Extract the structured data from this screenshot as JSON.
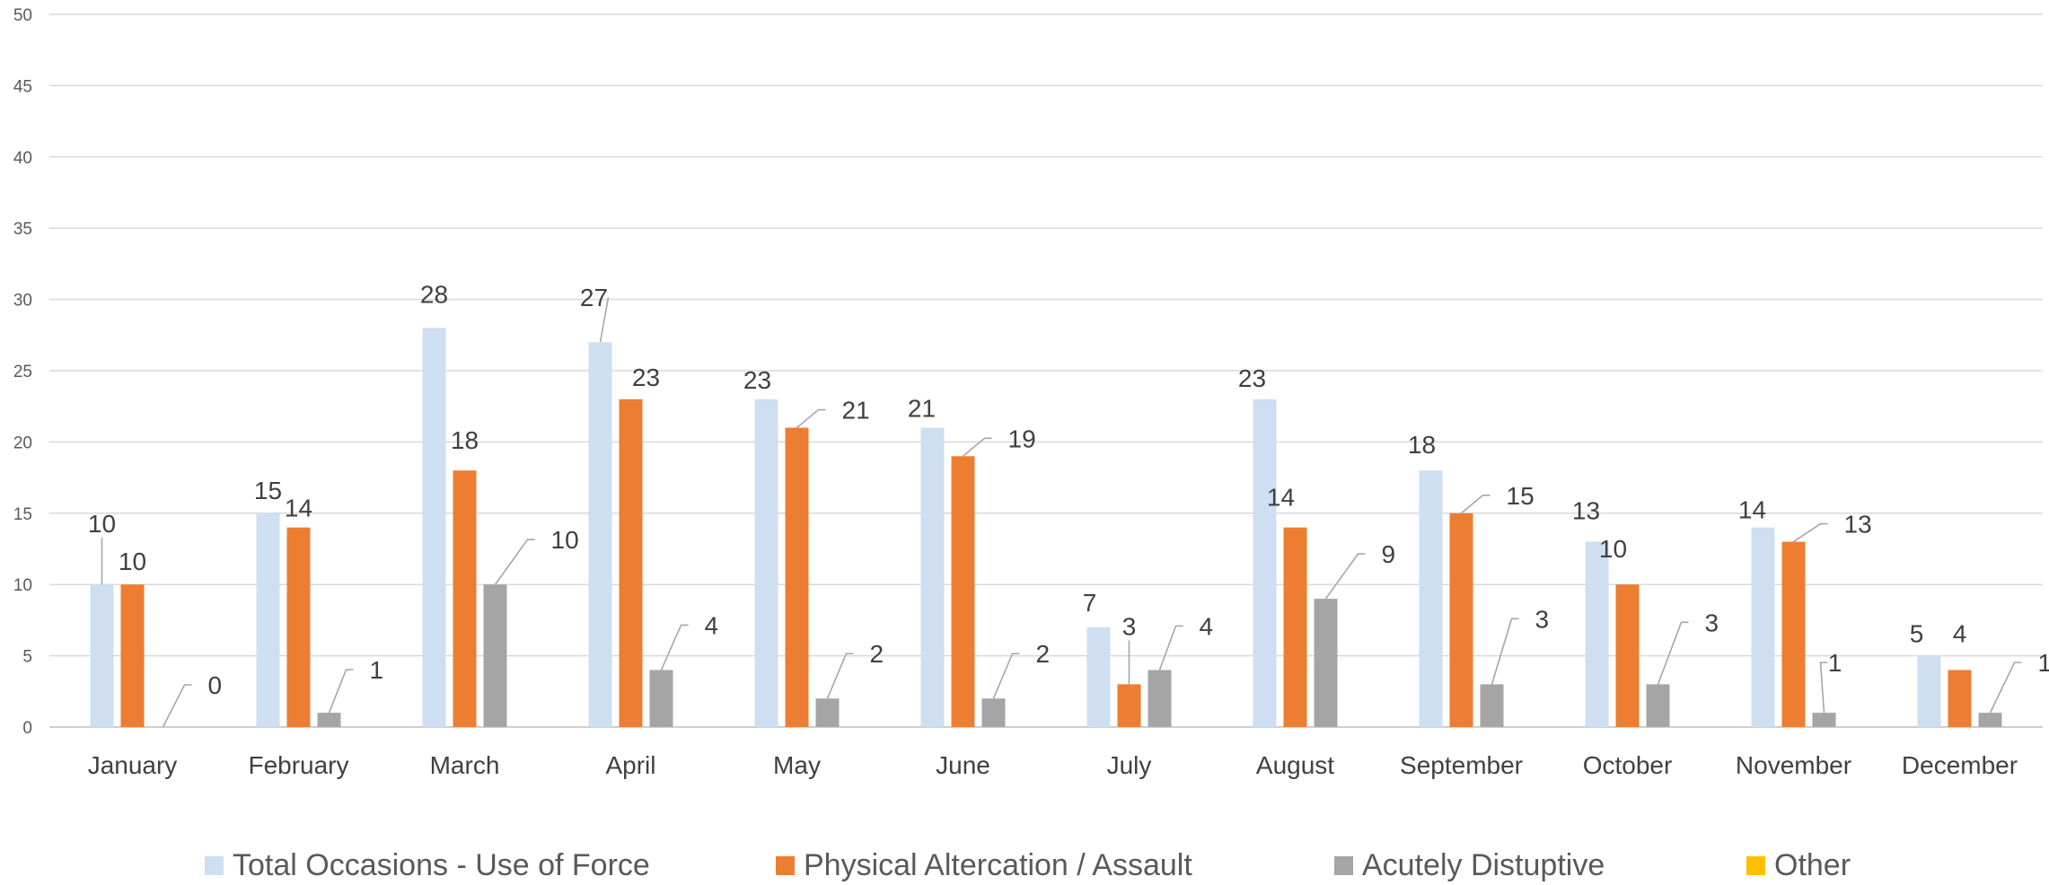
{
  "chart_data": {
    "type": "bar",
    "title": "",
    "xlabel": "",
    "ylabel": "",
    "ylim": [
      0,
      50
    ],
    "yticks": [
      0,
      5,
      10,
      15,
      20,
      25,
      30,
      35,
      40,
      45,
      50
    ],
    "grid": true,
    "legend_position": "bottom",
    "categories": [
      "January",
      "February",
      "March",
      "April",
      "May",
      "June",
      "July",
      "August",
      "September",
      "October",
      "November",
      "December"
    ],
    "series": [
      {
        "name": "Total Occasions - Use of Force",
        "color": "#cddff0",
        "values": [
          10,
          15,
          28,
          27,
          23,
          21,
          7,
          23,
          18,
          13,
          14,
          5
        ]
      },
      {
        "name": "Physical Altercation / Assault",
        "color": "#ed7d31",
        "values": [
          10,
          14,
          18,
          23,
          21,
          19,
          3,
          14,
          15,
          10,
          13,
          4
        ]
      },
      {
        "name": "Acutely Distuptive",
        "color": "#a5a5a5",
        "values": [
          0,
          1,
          10,
          4,
          2,
          2,
          4,
          9,
          3,
          3,
          1,
          1
        ]
      },
      {
        "name": "Other",
        "color": "#ffc000",
        "values": [
          null,
          null,
          null,
          null,
          null,
          null,
          null,
          null,
          null,
          null,
          null,
          null
        ]
      }
    ]
  }
}
